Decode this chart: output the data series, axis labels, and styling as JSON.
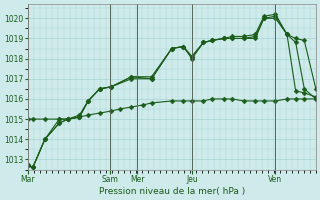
{
  "background_color": "#ceeaea",
  "grid_color": "#a8d4d4",
  "line_color": "#1a5c1a",
  "title": "Pression niveau de la mer( hPa )",
  "ylim": [
    1012.5,
    1020.7
  ],
  "yticks": [
    1013,
    1014,
    1015,
    1016,
    1017,
    1018,
    1019,
    1020
  ],
  "day_labels": [
    "Mar",
    "Sam",
    "Mer",
    "Jeu",
    "Ven"
  ],
  "day_positions": [
    0,
    0.286,
    0.381,
    0.571,
    0.857
  ],
  "series1_x": [
    0.0,
    0.018,
    0.06,
    0.11,
    0.14,
    0.18,
    0.21,
    0.25,
    0.29,
    0.32,
    0.36,
    0.4,
    0.43,
    0.5,
    0.54,
    0.57,
    0.61,
    0.64,
    0.68,
    0.71,
    0.75,
    0.79,
    0.82,
    0.86,
    0.9,
    0.93,
    0.96,
    1.0
  ],
  "series1_y": [
    1015.0,
    1015.0,
    1015.0,
    1015.0,
    1015.0,
    1015.1,
    1015.2,
    1015.3,
    1015.4,
    1015.5,
    1015.6,
    1015.7,
    1015.8,
    1015.9,
    1015.9,
    1015.9,
    1015.9,
    1016.0,
    1016.0,
    1016.0,
    1015.9,
    1015.9,
    1015.9,
    1015.9,
    1016.0,
    1016.0,
    1016.0,
    1016.0
  ],
  "series2_x": [
    0.0,
    0.018,
    0.06,
    0.11,
    0.14,
    0.18,
    0.21,
    0.25,
    0.29,
    0.36,
    0.43,
    0.5,
    0.54,
    0.57,
    0.61,
    0.64,
    0.68,
    0.71,
    0.75,
    0.79,
    0.82,
    0.86,
    0.9,
    0.93,
    0.96,
    1.0
  ],
  "series2_y": [
    1012.7,
    1012.6,
    1014.0,
    1014.8,
    1015.0,
    1015.1,
    1015.9,
    1016.5,
    1016.6,
    1017.1,
    1017.1,
    1018.5,
    1018.6,
    1018.0,
    1018.8,
    1018.9,
    1019.0,
    1019.1,
    1019.1,
    1019.2,
    1020.1,
    1020.2,
    1019.2,
    1019.0,
    1018.9,
    1016.5
  ],
  "series3_x": [
    0.0,
    0.018,
    0.06,
    0.11,
    0.14,
    0.18,
    0.21,
    0.25,
    0.29,
    0.36,
    0.43,
    0.5,
    0.54,
    0.57,
    0.61,
    0.64,
    0.68,
    0.71,
    0.75,
    0.79,
    0.82,
    0.86,
    0.9,
    0.93,
    0.96,
    1.0
  ],
  "series3_y": [
    1012.7,
    1012.6,
    1014.0,
    1014.8,
    1015.0,
    1015.1,
    1015.9,
    1016.5,
    1016.6,
    1017.1,
    1017.0,
    1018.5,
    1018.6,
    1018.1,
    1018.8,
    1018.9,
    1019.0,
    1019.0,
    1019.0,
    1019.0,
    1020.0,
    1020.1,
    1019.2,
    1016.4,
    1016.3,
    1016.1
  ],
  "series4_x": [
    0.0,
    0.018,
    0.06,
    0.11,
    0.14,
    0.18,
    0.21,
    0.25,
    0.29,
    0.36,
    0.43,
    0.5,
    0.54,
    0.57,
    0.61,
    0.64,
    0.68,
    0.71,
    0.75,
    0.79,
    0.82,
    0.86,
    0.9,
    0.93,
    0.96,
    1.0
  ],
  "series4_y": [
    1012.7,
    1012.6,
    1014.0,
    1015.0,
    1015.0,
    1015.2,
    1015.9,
    1016.5,
    1016.6,
    1017.0,
    1017.0,
    1018.5,
    1018.6,
    1018.1,
    1018.8,
    1018.9,
    1019.0,
    1019.0,
    1019.0,
    1019.1,
    1020.0,
    1020.0,
    1019.2,
    1018.8,
    1016.5,
    1016.0
  ]
}
